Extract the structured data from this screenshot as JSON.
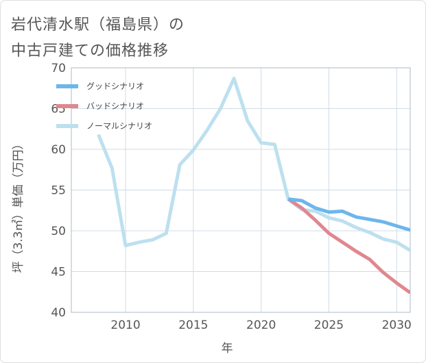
{
  "page": {
    "title_lines": [
      "岩代清水駅（福島県）の",
      "中古戸建ての価格推移"
    ]
  },
  "chart_data": {
    "type": "line",
    "title": "岩代清水駅（福島県）の中古戸建ての価格推移",
    "xlabel": "年",
    "ylabel": "坪（3.3㎡）単価（万円）",
    "xlim": [
      2006,
      2031
    ],
    "ylim": [
      40,
      70
    ],
    "xticks": [
      2010,
      2015,
      2020,
      2025,
      2030
    ],
    "yticks": [
      40,
      45,
      50,
      55,
      60,
      65,
      70
    ],
    "grid": true,
    "legend_position": "top-left",
    "series": [
      {
        "name": "グッドシナリオ",
        "color": "#6cb6ec",
        "x": [
          2022,
          2023,
          2024,
          2025,
          2026,
          2027,
          2028,
          2029,
          2030,
          2031
        ],
        "y": [
          53.9,
          53.7,
          52.8,
          52.3,
          52.4,
          51.7,
          51.4,
          51.1,
          50.6,
          50.1
        ]
      },
      {
        "name": "バッドシナリオ",
        "color": "#e0878f",
        "x": [
          2022,
          2023,
          2024,
          2025,
          2026,
          2027,
          2028,
          2029,
          2030,
          2031
        ],
        "y": [
          53.9,
          52.8,
          51.3,
          49.7,
          48.6,
          47.5,
          46.5,
          44.9,
          43.6,
          42.4
        ]
      },
      {
        "name": "ノーマルシナリオ",
        "color": "#bde0ef",
        "x": [
          2008,
          2009,
          2010,
          2011,
          2012,
          2013,
          2014,
          2015,
          2016,
          2017,
          2018,
          2019,
          2020,
          2021,
          2022,
          2023,
          2024,
          2025,
          2026,
          2027,
          2028,
          2029,
          2030,
          2031
        ],
        "y": [
          61.8,
          57.7,
          48.2,
          48.6,
          48.9,
          49.7,
          58.1,
          59.9,
          62.3,
          65.0,
          68.7,
          63.5,
          60.8,
          60.6,
          53.9,
          52.6,
          52.4,
          51.6,
          51.2,
          50.4,
          49.8,
          49.0,
          48.6,
          47.6
        ]
      }
    ]
  }
}
